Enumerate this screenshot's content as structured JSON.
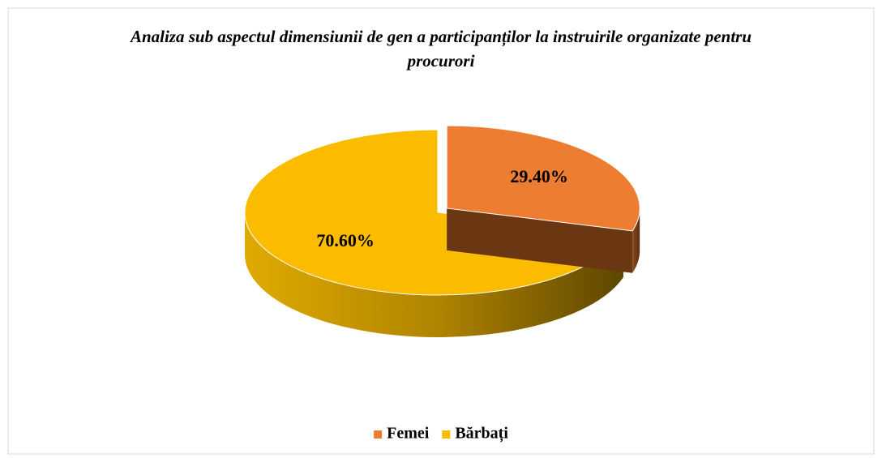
{
  "chart_data": {
    "type": "pie3d",
    "title": "Analiza sub aspectul dimensiunii de gen a participanților la instruirile organizate pentru procurori",
    "categories": [
      "Femei",
      "Bărbați"
    ],
    "values": [
      29.4,
      70.6
    ],
    "value_labels": [
      "29.40%",
      "70.60%"
    ],
    "colors": [
      "#ed7d31",
      "#fbbc00"
    ],
    "legend": "bottom"
  }
}
